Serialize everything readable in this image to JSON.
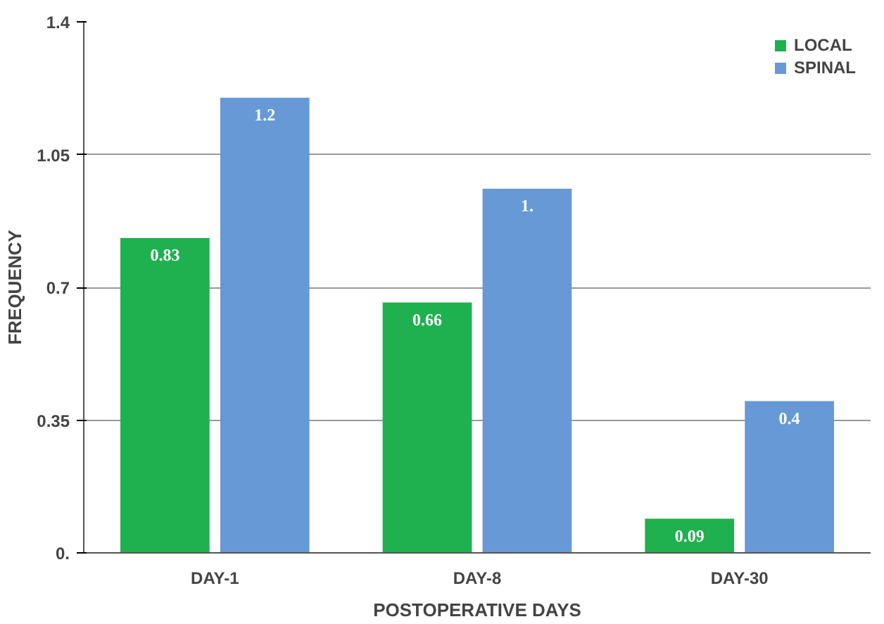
{
  "chart_data": {
    "type": "bar",
    "xlabel": "POSTOPERATIVE DAYS",
    "ylabel": "FREQUENCY",
    "categories": [
      "DAY-1",
      "DAY-8",
      "DAY-30"
    ],
    "series": [
      {
        "name": "LOCAL",
        "color": "#1fb04f",
        "values": [
          0.83,
          0.66,
          0.09
        ],
        "value_labels": [
          "0.83",
          "0.66",
          "0.09"
        ]
      },
      {
        "name": "SPINAL",
        "color": "#6699d6",
        "values": [
          1.2,
          0.96,
          0.4
        ],
        "value_labels": [
          "1.2",
          "1.",
          "0.4"
        ]
      }
    ],
    "ylim": [
      0,
      1.4
    ],
    "yticks": [
      {
        "value": 0,
        "label": "0."
      },
      0.35,
      0.7,
      1.05,
      1.4
    ],
    "grid": "y",
    "legend": "top right"
  }
}
